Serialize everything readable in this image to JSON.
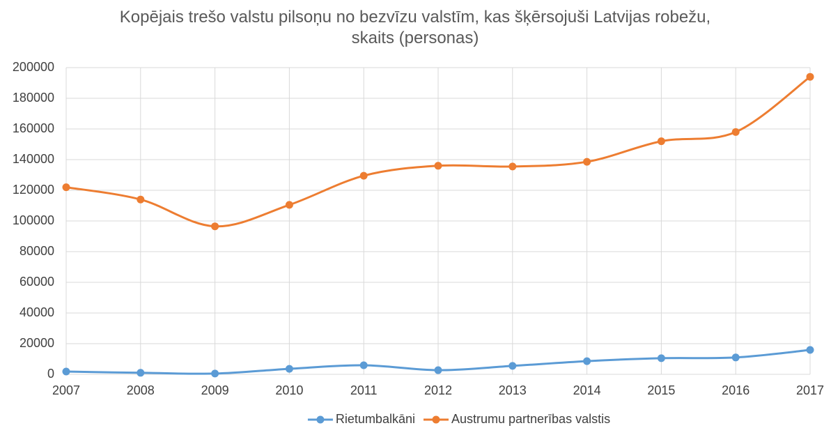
{
  "chart_data": {
    "type": "line",
    "title": "Kopējais trešo valstu pilsoņu no bezvīzu valstīm, kas šķērsojuši Latvijas robežu, skaits (personas)",
    "x": [
      2007,
      2008,
      2009,
      2010,
      2011,
      2012,
      2013,
      2014,
      2015,
      2016,
      2017
    ],
    "xlim": [
      2007,
      2017
    ],
    "xticks": [
      2007,
      2008,
      2009,
      2010,
      2011,
      2012,
      2013,
      2014,
      2015,
      2016,
      2017
    ],
    "ylim": [
      0,
      200000
    ],
    "yticks": [
      0,
      20000,
      40000,
      60000,
      80000,
      100000,
      120000,
      140000,
      160000,
      180000,
      200000
    ],
    "grid": true,
    "smooth": true,
    "legend": "bottom",
    "series": [
      {
        "name": "Rietumbalkāni",
        "color": "#5b9bd5",
        "values": [
          1800,
          1000,
          500,
          3600,
          5900,
          2700,
          5500,
          8600,
          10500,
          11000,
          15900
        ]
      },
      {
        "name": "Austrumu partnerības valstis",
        "color": "#ed7d31",
        "values": [
          122000,
          114000,
          96500,
          110500,
          129500,
          136000,
          135500,
          138600,
          152000,
          158000,
          194000
        ]
      }
    ]
  }
}
